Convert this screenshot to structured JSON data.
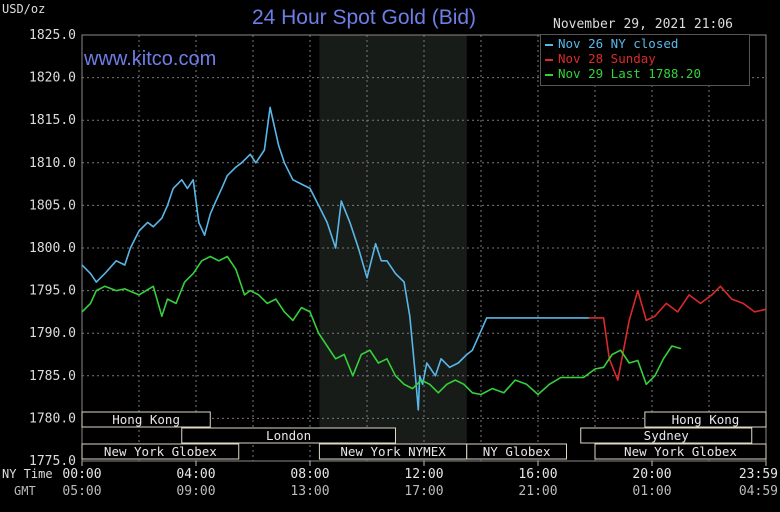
{
  "header": {
    "title": "24 Hour Spot Gold (Bid)",
    "units": "USD/oz",
    "datetime": "November 29, 2021 21:06",
    "watermark": "www.kitco.com"
  },
  "colors": {
    "background": "#000000",
    "grid": "#7a7a7a",
    "nymex_band": "#181c18",
    "nov26": "#59b7e8",
    "nov28": "#d92a2a",
    "nov29": "#35d13a",
    "title": "#6d7fe6",
    "session_box": "#e0d9c3"
  },
  "axes": {
    "ny_time_label": "NY Time",
    "gmt_label": "GMT",
    "ny_ticks": [
      "00:00",
      "04:00",
      "08:00",
      "12:00",
      "16:00",
      "20:00",
      "23:59"
    ],
    "gmt_ticks": [
      "05:00",
      "09:00",
      "13:00",
      "17:00",
      "21:00",
      "01:00",
      "04:59"
    ],
    "y_ticks": [
      "1825.0",
      "1820.0",
      "1815.0",
      "1810.0",
      "1805.0",
      "1800.0",
      "1795.0",
      "1790.0",
      "1785.0",
      "1780.0",
      "1775.0"
    ]
  },
  "sessions": [
    {
      "label": "Hong Kong",
      "start": 0.0,
      "end": 4.5,
      "row": 1
    },
    {
      "label": "Hong Kong",
      "start": 19.75,
      "end": 24.0,
      "row": 1
    },
    {
      "label": "London",
      "start": 3.5,
      "end": 11.0,
      "row": 2
    },
    {
      "label": "Sydney",
      "start": 17.5,
      "end": 23.5,
      "row": 2
    },
    {
      "label": "New York Globex",
      "start": 0.0,
      "end": 5.5,
      "row": 3
    },
    {
      "label": "New York NYMEX",
      "start": 8.33,
      "end": 13.5,
      "row": 3
    },
    {
      "label": "NY Globex",
      "start": 13.5,
      "end": 17.0,
      "row": 3
    },
    {
      "label": "New York Globex",
      "start": 18.0,
      "end": 24.0,
      "row": 3
    }
  ],
  "chart_data": {
    "type": "line",
    "title": "24 Hour Spot Gold (Bid)",
    "ylabel": "USD/oz",
    "xlabel": "NY Time",
    "x_unit": "hours (NY Time)",
    "xlim": [
      0,
      24
    ],
    "ylim": [
      1775,
      1825
    ],
    "grid": true,
    "legend_position": "top-right",
    "shaded_region": {
      "label": "New York NYMEX",
      "start": 8.33,
      "end": 13.5
    },
    "series": [
      {
        "name": "Nov 26 NY closed",
        "color": "#59b7e8",
        "x": [
          0,
          0.3,
          0.5,
          0.8,
          1.2,
          1.5,
          1.7,
          2.0,
          2.3,
          2.5,
          2.8,
          3.0,
          3.2,
          3.5,
          3.7,
          3.9,
          4.1,
          4.3,
          4.5,
          4.7,
          4.9,
          5.1,
          5.4,
          5.6,
          5.9,
          6.1,
          6.4,
          6.6,
          6.9,
          7.1,
          7.4,
          7.7,
          8.0,
          8.3,
          8.6,
          8.9,
          9.1,
          9.4,
          9.7,
          10.0,
          10.3,
          10.5,
          10.7,
          11.0,
          11.3,
          11.5,
          11.7,
          11.8,
          11.85,
          11.95,
          12.1,
          12.4,
          12.6,
          12.9,
          13.2,
          13.5,
          13.7,
          14.2,
          15.0,
          16.0,
          17.0,
          17.8
        ],
        "y": [
          1798.0,
          1797.0,
          1796.0,
          1797.0,
          1798.5,
          1798.0,
          1800.0,
          1802.0,
          1803.0,
          1802.5,
          1803.5,
          1805.0,
          1807.0,
          1808.0,
          1807.0,
          1808.0,
          1803.0,
          1801.5,
          1804.0,
          1805.5,
          1807.0,
          1808.5,
          1809.5,
          1810.0,
          1811.0,
          1810.0,
          1811.5,
          1816.5,
          1812.0,
          1810.0,
          1808.0,
          1807.5,
          1807.0,
          1805.0,
          1803.0,
          1800.0,
          1805.5,
          1803.0,
          1800.0,
          1796.5,
          1800.5,
          1798.5,
          1798.5,
          1797.0,
          1796.0,
          1792.0,
          1785.0,
          1781.0,
          1785.0,
          1784.0,
          1786.5,
          1785.0,
          1787.0,
          1786.0,
          1786.5,
          1787.5,
          1788.0,
          1791.8,
          1791.8,
          1791.8,
          1791.8,
          1791.8
        ]
      },
      {
        "name": "Nov 28 Sunday",
        "color": "#d92a2a",
        "x": [
          17.8,
          18.3,
          18.5,
          18.8,
          19.2,
          19.5,
          19.8,
          20.1,
          20.5,
          20.9,
          21.3,
          21.7,
          22.1,
          22.4,
          22.8,
          23.2,
          23.6,
          23.99
        ],
        "y": [
          1791.8,
          1791.8,
          1787.0,
          1784.5,
          1791.5,
          1795.0,
          1791.5,
          1792.0,
          1793.5,
          1792.5,
          1794.5,
          1793.5,
          1794.5,
          1795.5,
          1794.0,
          1793.5,
          1792.5,
          1792.8
        ]
      },
      {
        "name": "Nov 29 Last 1788.20",
        "color": "#35d13a",
        "x": [
          0,
          0.3,
          0.5,
          0.8,
          1.2,
          1.5,
          2.0,
          2.5,
          2.8,
          3.0,
          3.3,
          3.6,
          3.9,
          4.2,
          4.5,
          4.8,
          5.1,
          5.4,
          5.7,
          5.9,
          6.2,
          6.5,
          6.8,
          7.1,
          7.4,
          7.7,
          8.0,
          8.3,
          8.6,
          8.9,
          9.2,
          9.5,
          9.8,
          10.1,
          10.4,
          10.7,
          11.0,
          11.3,
          11.6,
          11.9,
          12.2,
          12.5,
          12.8,
          13.1,
          13.4,
          13.7,
          14.0,
          14.4,
          14.8,
          15.2,
          15.6,
          16.0,
          16.4,
          16.8,
          17.2,
          17.6,
          18.0,
          18.3,
          18.6,
          18.9,
          19.2,
          19.5,
          19.8,
          20.1,
          20.4,
          20.7,
          21.0
        ],
        "y": [
          1792.5,
          1793.5,
          1795.0,
          1795.5,
          1795.0,
          1795.2,
          1794.5,
          1795.5,
          1792.0,
          1794.0,
          1793.5,
          1796.0,
          1797.0,
          1798.5,
          1799.0,
          1798.5,
          1799.0,
          1797.5,
          1794.5,
          1795.0,
          1794.5,
          1793.5,
          1794.0,
          1792.5,
          1791.5,
          1793.0,
          1792.5,
          1790.0,
          1788.5,
          1787.0,
          1787.5,
          1785.0,
          1787.5,
          1788.0,
          1786.5,
          1787.0,
          1785.0,
          1784.0,
          1783.5,
          1784.5,
          1784.0,
          1783.0,
          1784.0,
          1784.5,
          1784.0,
          1783.0,
          1782.8,
          1783.5,
          1783.0,
          1784.5,
          1784.0,
          1782.8,
          1784.0,
          1784.8,
          1784.8,
          1784.8,
          1785.8,
          1786.0,
          1787.5,
          1788.0,
          1786.5,
          1786.8,
          1784.0,
          1785.0,
          1787.0,
          1788.5,
          1788.2
        ]
      }
    ]
  }
}
